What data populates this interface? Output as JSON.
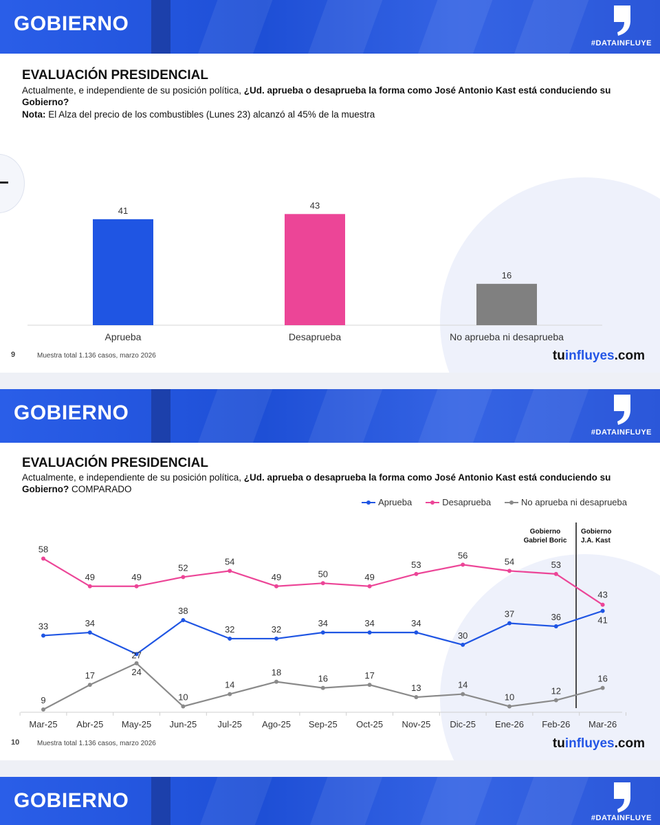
{
  "colors": {
    "banner": "#2a5ee8",
    "aprueba": "#1f55e3",
    "desaprueba": "#ec4597",
    "neutral": "#8a8a8a"
  },
  "slides": [
    {
      "banner_title": "GOBIERNO",
      "hashtag": "#DATAINFLUYE",
      "heading": "EVALUACIÓN PRESIDENCIAL",
      "question_prefix": "Actualmente, e independiente de su posición política, ",
      "question_bold": "¿Ud. aprueba o desaprueba la forma como José Antonio Kast está conduciendo su Gobierno?",
      "question_suffix": "",
      "note_label": "Nota:",
      "note_text": " El Alza del precio de los combustibles (Lunes 23) alcanzó al 45% de la muestra",
      "page_number": "9",
      "footer": "Muestra total 1.136 casos, marzo 2026",
      "brand_a": "tu",
      "brand_b": "influyes",
      "brand_c": ".com"
    },
    {
      "banner_title": "GOBIERNO",
      "hashtag": "#DATAINFLUYE",
      "heading": "EVALUACIÓN PRESIDENCIAL",
      "question_prefix": "Actualmente, e independiente de su posición política, ",
      "question_bold": "¿Ud. aprueba o desaprueba la forma como José Antonio Kast está conduciendo su Gobierno?",
      "question_suffix": " COMPARADO",
      "page_number": "10",
      "footer": "Muestra total 1.136 casos, marzo 2026",
      "brand_a": "tu",
      "brand_b": "influyes",
      "brand_c": ".com"
    },
    {
      "banner_title": "GOBIERNO",
      "hashtag": "#DATAINFLUYE"
    }
  ],
  "chart_data": [
    {
      "type": "bar",
      "categories": [
        "Aprueba",
        "Desaprueba",
        "No aprueba ni desaprueba"
      ],
      "values": [
        41,
        43,
        16
      ],
      "colors": [
        "#1f55e3",
        "#ec4597",
        "#808080"
      ],
      "ylim": [
        0,
        50
      ],
      "grid": false
    },
    {
      "type": "line",
      "categories": [
        "Mar-25",
        "Abr-25",
        "May-25",
        "Jun-25",
        "Jul-25",
        "Ago-25",
        "Sep-25",
        "Oct-25",
        "Nov-25",
        "Dic-25",
        "Ene-26",
        "Feb-26",
        "Mar-26"
      ],
      "series": [
        {
          "name": "Aprueba",
          "color": "#1f55e3",
          "values": [
            33,
            34,
            27,
            38,
            32,
            32,
            34,
            34,
            34,
            30,
            37,
            36,
            41
          ]
        },
        {
          "name": "Desaprueba",
          "color": "#ec4597",
          "values": [
            58,
            49,
            49,
            52,
            54,
            49,
            50,
            49,
            53,
            56,
            54,
            53,
            43
          ]
        },
        {
          "name": "No aprueba ni desaprueba",
          "color": "#8a8a8a",
          "values": [
            9,
            17,
            24,
            10,
            14,
            18,
            16,
            17,
            13,
            14,
            10,
            12,
            16
          ]
        }
      ],
      "legend": "top-right",
      "annotations": [
        "Gobierno Gabriel Boric",
        "Gobierno J.A. Kast"
      ],
      "annotation_lines": [
        [
          "Gobierno",
          "Gabriel Boric"
        ],
        [
          "Gobierno",
          "J.A. Kast"
        ]
      ],
      "grid": false
    }
  ]
}
